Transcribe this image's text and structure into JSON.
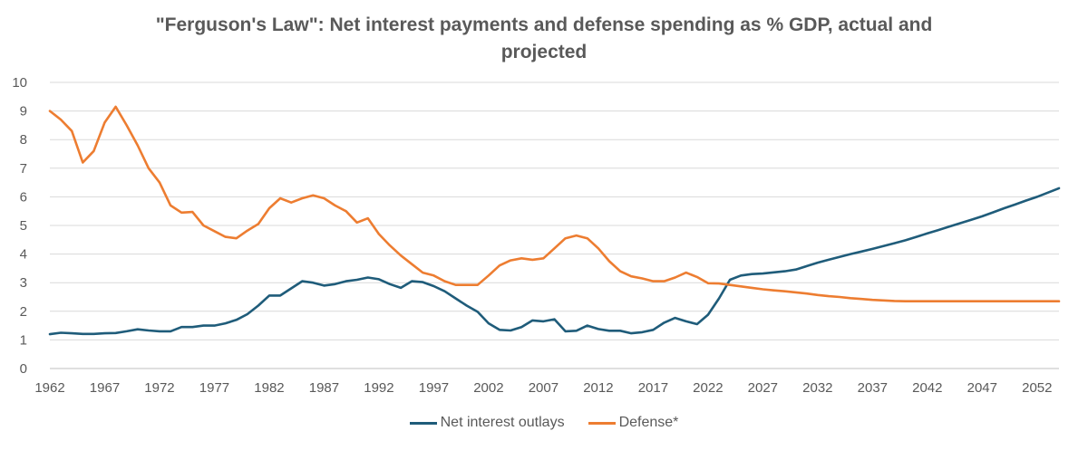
{
  "chart_data": {
    "type": "line",
    "title_line1": "\"Ferguson's Law\": Net interest payments and defense spending as % GDP, actual and",
    "title_line2": "projected",
    "xlim": [
      1962,
      2054
    ],
    "ylim": [
      0,
      10
    ],
    "y_ticks": [
      "0",
      "1",
      "2",
      "3",
      "4",
      "5",
      "6",
      "7",
      "8",
      "9",
      "10"
    ],
    "x_ticks": [
      "1962",
      "1967",
      "1972",
      "1977",
      "1982",
      "1987",
      "1992",
      "1997",
      "2002",
      "2007",
      "2012",
      "2017",
      "2022",
      "2027",
      "2032",
      "2037",
      "2042",
      "2047",
      "2052"
    ],
    "grid": true,
    "legend_position": "bottom",
    "series": [
      {
        "name": "Net interest outlays",
        "color": "#1F5C7A",
        "x": [
          1962,
          1963,
          1964,
          1965,
          1966,
          1967,
          1968,
          1969,
          1970,
          1971,
          1972,
          1973,
          1974,
          1975,
          1976,
          1977,
          1978,
          1979,
          1980,
          1981,
          1982,
          1983,
          1984,
          1985,
          1986,
          1987,
          1988,
          1989,
          1990,
          1991,
          1992,
          1993,
          1994,
          1995,
          1996,
          1997,
          1998,
          1999,
          2000,
          2001,
          2002,
          2003,
          2004,
          2005,
          2006,
          2007,
          2008,
          2009,
          2010,
          2011,
          2012,
          2013,
          2014,
          2015,
          2016,
          2017,
          2018,
          2019,
          2020,
          2021,
          2022,
          2023,
          2024,
          2025,
          2026,
          2027,
          2028,
          2029,
          2030,
          2031,
          2032,
          2033,
          2034,
          2035,
          2036,
          2037,
          2038,
          2039,
          2040,
          2041,
          2042,
          2043,
          2044,
          2045,
          2046,
          2047,
          2048,
          2049,
          2050,
          2051,
          2052,
          2053,
          2054
        ],
        "values": [
          1.2,
          1.25,
          1.23,
          1.21,
          1.21,
          1.23,
          1.24,
          1.3,
          1.37,
          1.33,
          1.3,
          1.3,
          1.45,
          1.45,
          1.5,
          1.5,
          1.58,
          1.7,
          1.9,
          2.2,
          2.55,
          2.55,
          2.8,
          3.05,
          3.0,
          2.9,
          2.95,
          3.05,
          3.1,
          3.18,
          3.12,
          2.95,
          2.82,
          3.05,
          3.02,
          2.88,
          2.7,
          2.45,
          2.2,
          1.98,
          1.58,
          1.35,
          1.33,
          1.45,
          1.68,
          1.65,
          1.72,
          1.3,
          1.32,
          1.5,
          1.38,
          1.32,
          1.32,
          1.23,
          1.27,
          1.35,
          1.6,
          1.77,
          1.65,
          1.55,
          1.88,
          2.45,
          3.1,
          3.25,
          3.3,
          3.32,
          3.36,
          3.4,
          3.46,
          3.58,
          3.7,
          3.8,
          3.9,
          4.0,
          4.09,
          4.18,
          4.28,
          4.38,
          4.48,
          4.6,
          4.72,
          4.84,
          4.96,
          5.08,
          5.2,
          5.32,
          5.46,
          5.6,
          5.73,
          5.87,
          6.0,
          6.15,
          6.3
        ]
      },
      {
        "name": "Defense*",
        "color": "#ED7D31",
        "x": [
          1962,
          1963,
          1964,
          1965,
          1966,
          1967,
          1968,
          1969,
          1970,
          1971,
          1972,
          1973,
          1974,
          1975,
          1976,
          1977,
          1978,
          1979,
          1980,
          1981,
          1982,
          1983,
          1984,
          1985,
          1986,
          1987,
          1988,
          1989,
          1990,
          1991,
          1992,
          1993,
          1994,
          1995,
          1996,
          1997,
          1998,
          1999,
          2000,
          2001,
          2002,
          2003,
          2004,
          2005,
          2006,
          2007,
          2008,
          2009,
          2010,
          2011,
          2012,
          2013,
          2014,
          2015,
          2016,
          2017,
          2018,
          2019,
          2020,
          2021,
          2022,
          2023,
          2024,
          2025,
          2026,
          2027,
          2028,
          2029,
          2030,
          2031,
          2032,
          2033,
          2034,
          2035,
          2036,
          2037,
          2038,
          2039,
          2040,
          2041,
          2042,
          2043,
          2044,
          2045,
          2046,
          2047,
          2048,
          2049,
          2050,
          2051,
          2052,
          2053,
          2054
        ],
        "values": [
          9.0,
          8.7,
          8.3,
          7.2,
          7.6,
          8.6,
          9.15,
          8.5,
          7.8,
          7.0,
          6.5,
          5.7,
          5.45,
          5.47,
          5.0,
          4.8,
          4.6,
          4.55,
          4.82,
          5.05,
          5.6,
          5.95,
          5.8,
          5.95,
          6.05,
          5.95,
          5.7,
          5.5,
          5.1,
          5.25,
          4.7,
          4.3,
          3.95,
          3.65,
          3.35,
          3.25,
          3.05,
          2.92,
          2.92,
          2.92,
          3.25,
          3.6,
          3.78,
          3.85,
          3.8,
          3.85,
          4.2,
          4.55,
          4.65,
          4.55,
          4.2,
          3.75,
          3.4,
          3.22,
          3.15,
          3.05,
          3.05,
          3.18,
          3.35,
          3.2,
          2.98,
          2.97,
          2.92,
          2.87,
          2.82,
          2.77,
          2.73,
          2.7,
          2.66,
          2.62,
          2.57,
          2.53,
          2.5,
          2.46,
          2.43,
          2.4,
          2.38,
          2.36,
          2.35,
          2.35,
          2.35,
          2.35,
          2.35,
          2.35,
          2.35,
          2.35,
          2.35,
          2.35,
          2.35,
          2.35,
          2.35,
          2.35,
          2.35
        ]
      }
    ]
  }
}
